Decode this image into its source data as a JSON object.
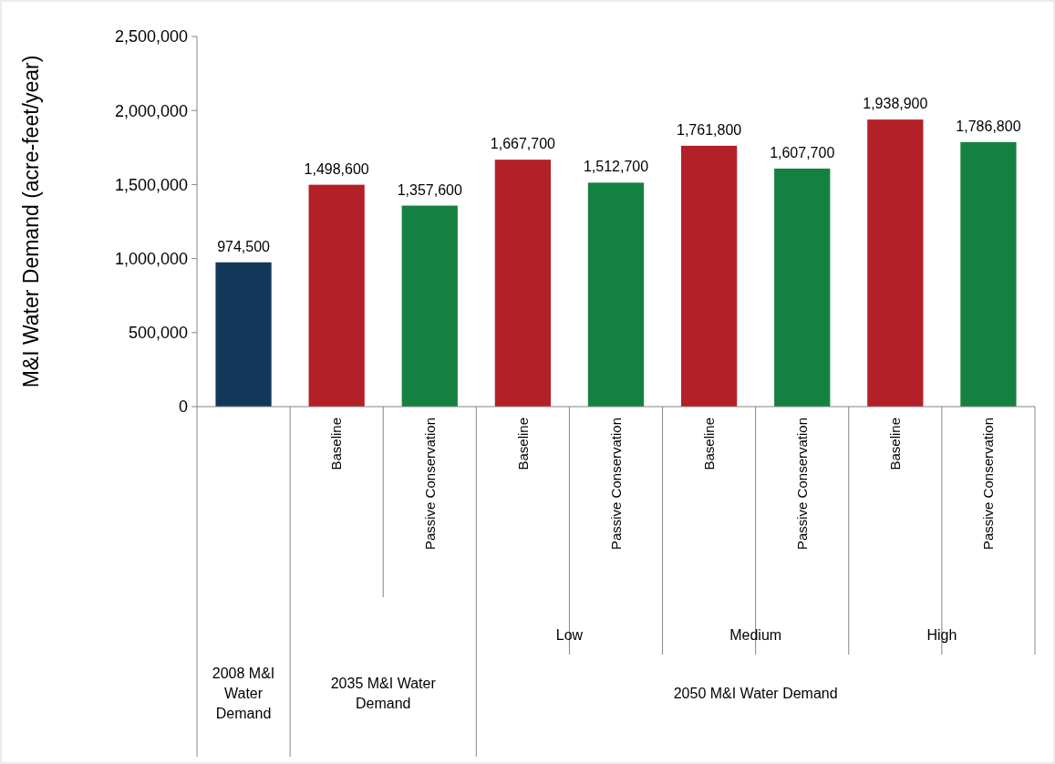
{
  "chart_data": {
    "type": "bar",
    "ylabel": "M&I Water Demand (acre-feet/year)",
    "categories": [
      null,
      "Baseline",
      "Passive Conservation",
      "Baseline",
      "Passive Conservation",
      "Baseline",
      "Passive Conservation",
      "Baseline",
      "Passive Conservation"
    ],
    "values": [
      974500,
      1498600,
      1357600,
      1667700,
      1512700,
      1761800,
      1607700,
      1938900,
      1786800
    ],
    "colors": [
      "#12375b",
      "#b32027",
      "#158140",
      "#b32027",
      "#158140",
      "#b32027",
      "#158140",
      "#b32027",
      "#158140"
    ],
    "value_labels": [
      "974,500",
      "1,498,600",
      "1,357,600",
      "1,667,700",
      "1,512,700",
      "1,761,800",
      "1,607,700",
      "1,938,900",
      "1,786,800"
    ],
    "ylim": [
      0,
      2500000
    ],
    "yticks": [
      {
        "value": 0,
        "label": "0"
      },
      {
        "value": 500000,
        "label": "500,000"
      },
      {
        "value": 1000000,
        "label": "1,000,000"
      },
      {
        "value": 1500000,
        "label": "1,500,000"
      },
      {
        "value": 2000000,
        "label": "2,000,000"
      },
      {
        "value": 2500000,
        "label": "2,500,000"
      }
    ],
    "annotations": [
      "Low",
      "Medium",
      "High",
      "2008 M&I Water Demand",
      "2035 M&I Water Demand",
      "2050 M&I Water Demand"
    ],
    "grid": false
  }
}
